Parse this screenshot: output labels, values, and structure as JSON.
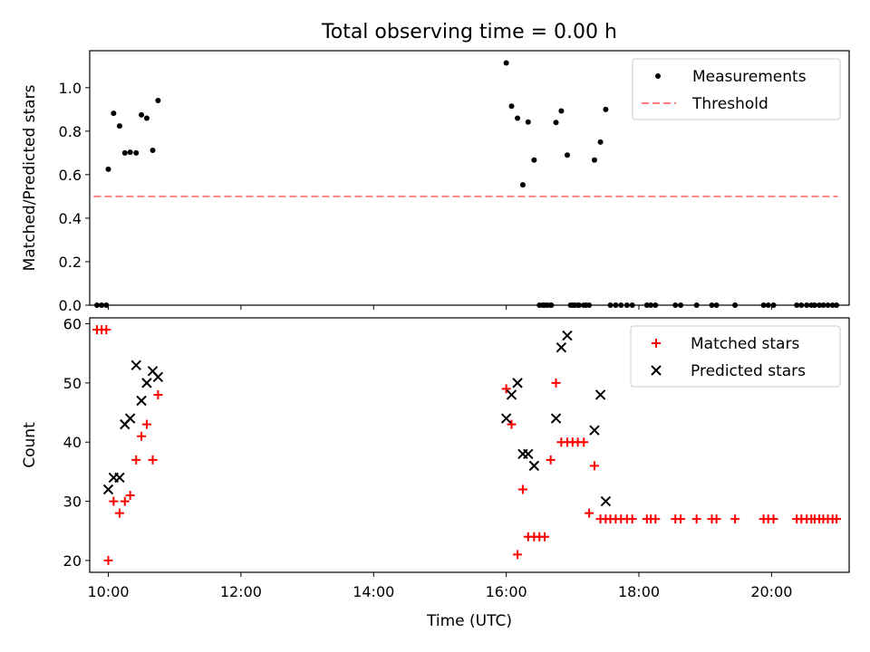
{
  "title": "Total observing time = 0.00 h",
  "chart_data": [
    {
      "type": "scatter",
      "ylabel": "Matched/Predicted stars",
      "xlim": [
        9.72,
        21.17
      ],
      "ylim": [
        0,
        1.17
      ],
      "yticks": [
        0.0,
        0.2,
        0.4,
        0.6,
        0.8,
        1.0
      ],
      "ytick_labels": [
        "0.0",
        "0.2",
        "0.4",
        "0.6",
        "0.8",
        "1.0"
      ],
      "legend_position": "top-right",
      "series": [
        {
          "name": "Measurements",
          "marker": "dot",
          "color": "#000000",
          "x": [
            9.83,
            9.9,
            9.97,
            10.0,
            10.08,
            10.17,
            10.25,
            10.33,
            10.42,
            10.5,
            10.58,
            10.67,
            10.75,
            16.0,
            16.08,
            16.17,
            16.25,
            16.33,
            16.42,
            16.5,
            16.58,
            16.67,
            16.75,
            16.83,
            16.92,
            17.0,
            17.08,
            17.17,
            17.25,
            17.33,
            17.42,
            17.5,
            16.55,
            16.62,
            16.68,
            16.97,
            17.03,
            17.1,
            17.2,
            17.57,
            17.65,
            17.73,
            17.82,
            17.9,
            18.12,
            18.18,
            18.25,
            18.55,
            18.63,
            18.87,
            19.1,
            19.17,
            19.45,
            19.88,
            19.95,
            20.03,
            20.38,
            20.45,
            20.53,
            20.6,
            20.65,
            20.72,
            20.78,
            20.85,
            20.92,
            20.98
          ],
          "y": [
            0.0,
            0.0,
            0.0,
            0.625,
            0.882,
            0.824,
            0.7,
            0.703,
            0.7,
            0.875,
            0.86,
            0.712,
            0.941,
            1.114,
            0.915,
            0.86,
            0.553,
            0.842,
            0.667,
            0.0,
            0.0,
            0.0,
            0.84,
            0.893,
            0.69,
            0.0,
            0.0,
            0.0,
            0.0,
            0.667,
            0.75,
            0.9,
            0.0,
            0.0,
            0.0,
            0.0,
            0.0,
            0.0,
            0.0,
            0.0,
            0.0,
            0.0,
            0.0,
            0.0,
            0.0,
            0.0,
            0.0,
            0.0,
            0.0,
            0.0,
            0.0,
            0.0,
            0.0,
            0.0,
            0.0,
            0.0,
            0.0,
            0.0,
            0.0,
            0.0,
            0.0,
            0.0,
            0.0,
            0.0,
            0.0,
            0.0
          ]
        },
        {
          "name": "Threshold",
          "marker": "dashed-line",
          "color": "#ff7f7f",
          "x": [
            9.78,
            21.0
          ],
          "y": [
            0.5,
            0.5
          ]
        }
      ]
    },
    {
      "type": "scatter",
      "ylabel": "Count",
      "xlabel": "Time (UTC)",
      "xlim": [
        9.72,
        21.17
      ],
      "ylim": [
        18,
        61
      ],
      "yticks": [
        20,
        30,
        40,
        50,
        60
      ],
      "ytick_labels": [
        "20",
        "30",
        "40",
        "50",
        "60"
      ],
      "xticks": [
        10,
        12,
        14,
        16,
        18,
        20
      ],
      "xtick_labels": [
        "10:00",
        "12:00",
        "14:00",
        "16:00",
        "18:00",
        "20:00"
      ],
      "legend_position": "top-right",
      "series": [
        {
          "name": "Matched stars",
          "marker": "plus",
          "color": "#ff0000",
          "x": [
            9.83,
            9.9,
            9.97,
            10.0,
            10.08,
            10.17,
            10.25,
            10.33,
            10.42,
            10.5,
            10.58,
            10.67,
            10.75,
            16.0,
            16.08,
            16.17,
            16.25,
            16.33,
            16.42,
            16.5,
            16.58,
            16.67,
            16.75,
            16.83,
            16.92,
            17.0,
            17.08,
            17.17,
            17.25,
            17.33,
            17.42,
            17.5,
            17.57,
            17.65,
            17.73,
            17.82,
            17.9,
            18.12,
            18.18,
            18.25,
            18.55,
            18.63,
            18.87,
            19.1,
            19.17,
            19.45,
            19.88,
            19.95,
            20.03,
            20.38,
            20.45,
            20.53,
            20.6,
            20.65,
            20.72,
            20.78,
            20.85,
            20.92,
            20.98
          ],
          "y": [
            59,
            59,
            59,
            20,
            30,
            28,
            30,
            31,
            37,
            41,
            43,
            37,
            48,
            49,
            43,
            21,
            32,
            24,
            24,
            24,
            24,
            37,
            50,
            40,
            40,
            40,
            40,
            40,
            28,
            36,
            27,
            27,
            27,
            27,
            27,
            27,
            27,
            27,
            27,
            27,
            27,
            27,
            27,
            27,
            27,
            27,
            27,
            27,
            27,
            27,
            27,
            27,
            27,
            27,
            27,
            27,
            27,
            27,
            27
          ]
        },
        {
          "name": "Predicted stars",
          "marker": "x",
          "color": "#000000",
          "x": [
            10.0,
            10.08,
            10.17,
            10.25,
            10.33,
            10.42,
            10.5,
            10.58,
            10.67,
            10.75,
            16.0,
            16.08,
            16.17,
            16.25,
            16.33,
            16.42,
            16.75,
            16.83,
            16.92,
            17.33,
            17.42,
            17.5
          ],
          "y": [
            32,
            34,
            34,
            43,
            44,
            53,
            47,
            50,
            52,
            51,
            44,
            48,
            50,
            38,
            38,
            36,
            44,
            56,
            58,
            42,
            48,
            30
          ]
        }
      ]
    }
  ]
}
